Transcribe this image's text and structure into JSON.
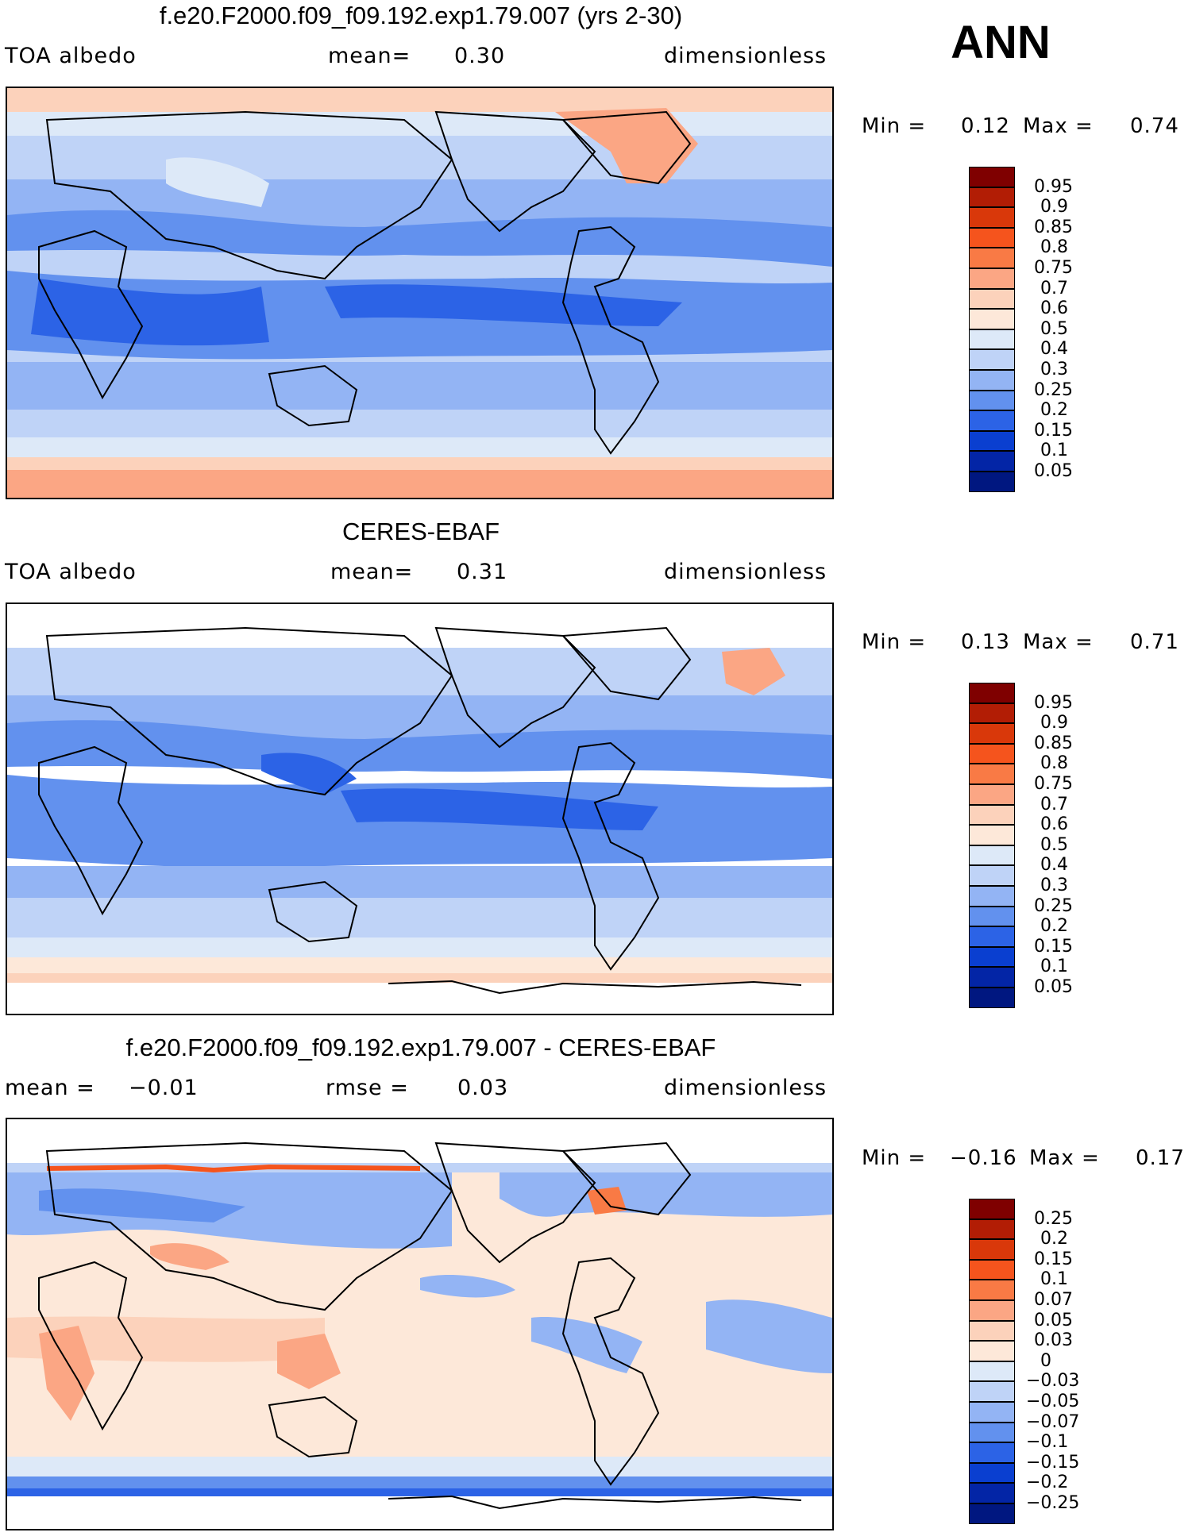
{
  "season": "ANN",
  "panels": [
    {
      "title": "f.e20.F2000.f09_f09.192.exp1.79.007 (yrs 2-30)",
      "left_label": "TOA albedo",
      "center_label": "mean=",
      "center_value": "0.30",
      "units": "dimensionless",
      "min_label": "Min =",
      "min_value": "0.12",
      "max_label": "Max =",
      "max_value": "0.74",
      "colorbar": {
        "labels": [
          "0.95",
          "0.9",
          "0.85",
          "0.8",
          "0.75",
          "0.7",
          "0.6",
          "0.5",
          "0.4",
          "0.3",
          "0.25",
          "0.2",
          "0.15",
          "0.1",
          "0.05"
        ],
        "colors": [
          "#7f0000",
          "#b21d05",
          "#d9380a",
          "#f5541d",
          "#f97a45",
          "#fba684",
          "#fcd2bb",
          "#fde8d9",
          "#dde9f8",
          "#bfd3f7",
          "#93b4f4",
          "#6291ee",
          "#2c63e6",
          "#0a3fd0",
          "#0325a6",
          "#001780"
        ]
      }
    },
    {
      "title": "CERES-EBAF",
      "left_label": "TOA albedo",
      "center_label": "mean=",
      "center_value": "0.31",
      "units": "dimensionless",
      "min_label": "Min =",
      "min_value": "0.13",
      "max_label": "Max =",
      "max_value": "0.71",
      "colorbar": {
        "labels": [
          "0.95",
          "0.9",
          "0.85",
          "0.8",
          "0.75",
          "0.7",
          "0.6",
          "0.5",
          "0.4",
          "0.3",
          "0.25",
          "0.2",
          "0.15",
          "0.1",
          "0.05"
        ],
        "colors": [
          "#7f0000",
          "#b21d05",
          "#d9380a",
          "#f5541d",
          "#f97a45",
          "#fba684",
          "#fcd2bb",
          "#fde8d9",
          "#dde9f8",
          "#bfd3f7",
          "#93b4f4",
          "#6291ee",
          "#2c63e6",
          "#0a3fd0",
          "#0325a6",
          "#001780"
        ]
      }
    },
    {
      "title": "f.e20.F2000.f09_f09.192.exp1.79.007 - CERES-EBAF",
      "left_label": "mean =",
      "left_value": "−0.01",
      "center_label": "rmse =",
      "center_value": "0.03",
      "units": "dimensionless",
      "min_label": "Min =",
      "min_value": "−0.16",
      "max_label": "Max =",
      "max_value": "0.17",
      "colorbar": {
        "labels": [
          "0.25",
          "0.2",
          "0.15",
          "0.1",
          "0.07",
          "0.05",
          "0.03",
          "0",
          "−0.03",
          "−0.05",
          "−0.07",
          "−0.1",
          "−0.15",
          "−0.2",
          "−0.25"
        ],
        "colors": [
          "#7f0000",
          "#b21d05",
          "#d9380a",
          "#f5541d",
          "#f97a45",
          "#fba684",
          "#fcd2bb",
          "#fde8d9",
          "#dde9f8",
          "#bfd3f7",
          "#93b4f4",
          "#6291ee",
          "#2c63e6",
          "#0a3fd0",
          "#0325a6",
          "#001780"
        ]
      }
    }
  ]
}
